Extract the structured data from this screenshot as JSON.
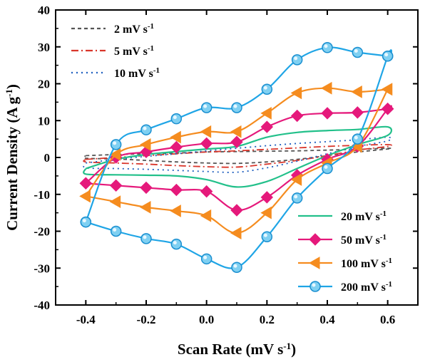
{
  "chart_data": {
    "type": "line",
    "xlabel": "Scan Rate (mV s",
    "xlabel_sup": "-1",
    "xlabel_end": ")",
    "ylabel": "Current Density (A g",
    "ylabel_sup": "-1",
    "ylabel_end": ")",
    "xlim": [
      -0.5,
      0.7
    ],
    "ylim": [
      -40,
      40
    ],
    "xticks": [
      -0.4,
      -0.2,
      0.0,
      0.2,
      0.4,
      0.6
    ],
    "xtick_labels": [
      "-0.4",
      "-0.2",
      "0.0",
      "0.2",
      "0.4",
      "0.6"
    ],
    "yticks": [
      -40,
      -30,
      -20,
      -10,
      0,
      10,
      20,
      30,
      40
    ],
    "ytick_labels": [
      "-40",
      "-30",
      "-20",
      "-10",
      "0",
      "10",
      "20",
      "30",
      "40"
    ],
    "grid": false,
    "series": [
      {
        "name": "2 mV s",
        "name_sup": "-1",
        "color": "#555555",
        "dash": "dashed",
        "marker": "none",
        "x": [
          -0.4,
          -0.3,
          -0.2,
          -0.1,
          0.0,
          0.1,
          0.2,
          0.3,
          0.4,
          0.5,
          0.6,
          0.6,
          0.5,
          0.4,
          0.3,
          0.2,
          0.1,
          0.0,
          -0.1,
          -0.2,
          -0.3,
          -0.4,
          -0.4
        ],
        "y": [
          0.5,
          0.8,
          1.0,
          1.2,
          1.5,
          1.6,
          1.7,
          1.8,
          2.0,
          2.2,
          2.5,
          2.3,
          1.5,
          0.5,
          -0.5,
          -1.2,
          -1.6,
          -1.5,
          -1.2,
          -0.8,
          -0.4,
          -0.2,
          0.5
        ]
      },
      {
        "name": "5 mV s",
        "name_sup": "-1",
        "color": "#d9362b",
        "dash": "dashdot",
        "marker": "none",
        "x": [
          -0.4,
          -0.3,
          -0.2,
          -0.1,
          0.0,
          0.1,
          0.2,
          0.3,
          0.4,
          0.5,
          0.6,
          0.6,
          0.5,
          0.4,
          0.3,
          0.2,
          0.1,
          0.0,
          -0.1,
          -0.2,
          -0.3,
          -0.4,
          -0.4
        ],
        "y": [
          -0.5,
          0.0,
          0.5,
          1.0,
          1.5,
          1.8,
          2.2,
          2.6,
          3.0,
          3.3,
          3.5,
          3.0,
          2.0,
          0.5,
          -0.8,
          -1.8,
          -2.6,
          -2.5,
          -2.2,
          -1.8,
          -1.5,
          -1.2,
          -0.5
        ]
      },
      {
        "name": "10 mV s",
        "name_sup": "-1",
        "color": "#1f5fbf",
        "dash": "dotted",
        "marker": "none",
        "x": [
          -0.4,
          -0.3,
          -0.2,
          -0.1,
          0.0,
          0.1,
          0.2,
          0.3,
          0.4,
          0.5,
          0.6,
          0.6,
          0.5,
          0.4,
          0.3,
          0.2,
          0.1,
          0.0,
          -0.1,
          -0.2,
          -0.3,
          -0.4,
          -0.4
        ],
        "y": [
          -1.5,
          -0.5,
          0.3,
          1.0,
          1.8,
          2.5,
          3.2,
          3.8,
          4.3,
          4.8,
          5.5,
          4.5,
          3.0,
          1.0,
          -1.0,
          -2.8,
          -4.0,
          -3.8,
          -3.5,
          -3.2,
          -3.0,
          -2.8,
          -1.5
        ]
      },
      {
        "name": "20 mV s",
        "name_sup": "-1",
        "color": "#22c08a",
        "dash": "solid",
        "marker": "none",
        "x": [
          -0.4,
          -0.3,
          -0.2,
          -0.1,
          0.0,
          0.1,
          0.2,
          0.3,
          0.4,
          0.5,
          0.6,
          0.6,
          0.5,
          0.4,
          0.3,
          0.2,
          0.1,
          0.0,
          -0.1,
          -0.2,
          -0.3,
          -0.4,
          -0.4
        ],
        "y": [
          -3.0,
          -0.5,
          0.8,
          1.6,
          2.3,
          3.0,
          5.5,
          6.8,
          7.3,
          7.6,
          8.3,
          6.0,
          3.5,
          0.5,
          -3.0,
          -6.5,
          -8.0,
          -6.0,
          -5.0,
          -4.8,
          -4.7,
          -4.5,
          -3.0
        ]
      },
      {
        "name": "50 mV s",
        "name_sup": "-1",
        "color": "#e5197b",
        "dash": "solid",
        "marker": "diamond",
        "x": [
          -0.4,
          -0.3,
          -0.2,
          -0.1,
          0.0,
          0.1,
          0.2,
          0.3,
          0.4,
          0.5,
          0.6,
          0.6,
          0.5,
          0.4,
          0.3,
          0.2,
          0.1,
          0.0,
          -0.1,
          -0.2,
          -0.3,
          -0.4,
          -0.4
        ],
        "y": [
          -7.0,
          0.0,
          1.5,
          2.8,
          3.8,
          4.2,
          8.3,
          11.3,
          12.0,
          12.2,
          13.2,
          13.2,
          3.0,
          -0.5,
          -4.8,
          -10.8,
          -14.3,
          -9.2,
          -8.8,
          -8.2,
          -7.6,
          -7.0,
          -7.0
        ]
      },
      {
        "name": "100 mV s",
        "name_sup": "-1",
        "color": "#f58c1f",
        "dash": "solid",
        "marker": "triangle-left",
        "x": [
          -0.4,
          -0.3,
          -0.2,
          -0.1,
          0.0,
          0.1,
          0.2,
          0.3,
          0.4,
          0.5,
          0.6,
          0.6,
          0.5,
          0.4,
          0.3,
          0.2,
          0.1,
          0.0,
          -0.1,
          -0.2,
          -0.3,
          -0.4,
          -0.4
        ],
        "y": [
          -10.5,
          0.8,
          3.5,
          5.5,
          7.0,
          7.0,
          12.0,
          17.5,
          18.8,
          17.8,
          18.5,
          18.5,
          3.0,
          -1.5,
          -6.0,
          -15.0,
          -20.5,
          -15.8,
          -14.5,
          -13.5,
          -12.0,
          -10.5,
          -10.5
        ]
      },
      {
        "name": "200 mV s",
        "name_sup": "-1",
        "color": "#1fa5e6",
        "dash": "solid",
        "marker": "circle",
        "x": [
          -0.4,
          -0.3,
          -0.2,
          -0.1,
          0.0,
          0.1,
          0.2,
          0.3,
          0.4,
          0.5,
          0.6,
          0.6,
          0.5,
          0.4,
          0.3,
          0.2,
          0.1,
          0.0,
          -0.1,
          -0.2,
          -0.3,
          -0.4,
          -0.4
        ],
        "y": [
          -17.5,
          3.5,
          7.5,
          10.5,
          13.5,
          13.5,
          18.5,
          26.5,
          29.8,
          28.5,
          27.5,
          27.5,
          5.0,
          -3.0,
          -11.0,
          -21.5,
          -29.8,
          -27.5,
          -23.5,
          -22.0,
          -20.0,
          -17.5,
          -17.5
        ]
      }
    ]
  }
}
